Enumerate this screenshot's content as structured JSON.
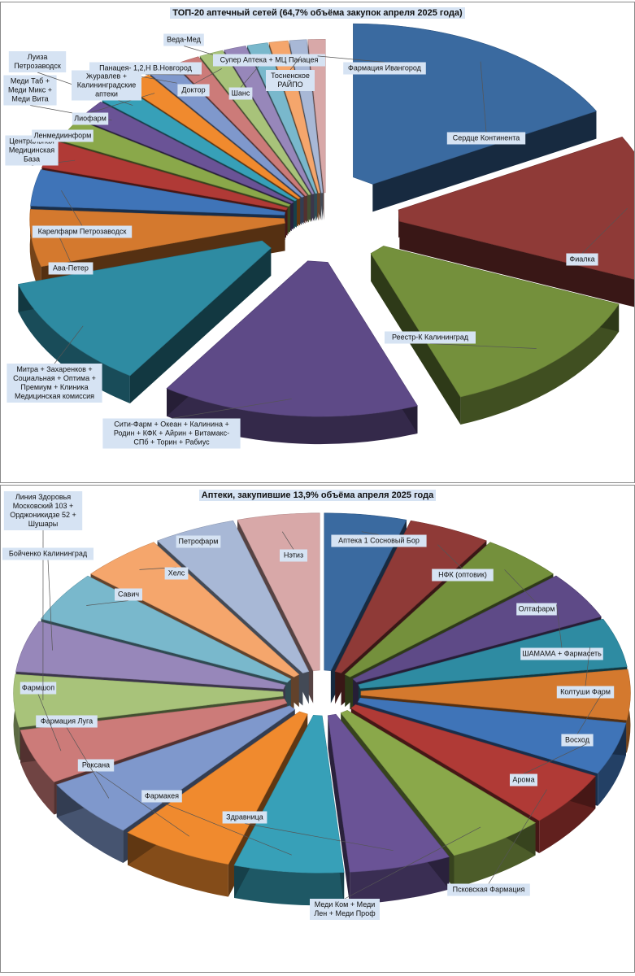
{
  "chart_data": [
    {
      "type": "pie",
      "title": "ТОП-20 аптечный сетей (64,7% объёма закупок апреля 2025 года)",
      "slices": [
        {
          "name": "Сердце Континента",
          "value": 17.0,
          "color": "#3a6aa0"
        },
        {
          "name": "Фиалка",
          "value": 14.0,
          "color": "#8f3a37"
        },
        {
          "name": "Реестр-К Калининград",
          "value": 13.0,
          "color": "#74903c"
        },
        {
          "name": "Сити-Фарм + Океан + Калинина + Родин + КФК + Айрин + Витамакс-СПб + Торин + Рабиус",
          "value": 15.0,
          "color": "#5e4a87"
        },
        {
          "name": "Митра + Захаренков + Социальная + Оптима + Премиум + Клиника Медицинская комиссия",
          "value": 11.0,
          "color": "#2e8ba2"
        },
        {
          "name": "Ава-Петер",
          "value": 5.5,
          "color": "#d4792e"
        },
        {
          "name": "Карелфарм Петрозаводск",
          "value": 3.5,
          "color": "#3f74b8"
        },
        {
          "name": "Центральная Медицинская База",
          "value": 2.6,
          "color": "#b03a36"
        },
        {
          "name": "Ленмедиинформ",
          "value": 2.2,
          "color": "#8aa84a"
        },
        {
          "name": "Меди Таб + Меди Микс + Меди Вита",
          "value": 2.0,
          "color": "#6a5396"
        },
        {
          "name": "Луиза Петрозаводск",
          "value": 1.8,
          "color": "#37a0b8"
        },
        {
          "name": "Лиофарм",
          "value": 1.7,
          "color": "#f08a2e"
        },
        {
          "name": "Журавлев + Калининградские аптеки",
          "value": 1.6,
          "color": "#7f98cc"
        },
        {
          "name": "Панацея- 1,2,Н В.Новгород",
          "value": 1.5,
          "color": "#cc7b79"
        },
        {
          "name": "Доктор",
          "value": 1.4,
          "color": "#a8c37a"
        },
        {
          "name": "Веда-Мед",
          "value": 1.3,
          "color": "#9787ba"
        },
        {
          "name": "Шанс",
          "value": 1.2,
          "color": "#79b8cc"
        },
        {
          "name": "Супер Аптека + МЦ Панацея",
          "value": 1.1,
          "color": "#f5a66c"
        },
        {
          "name": "Тосненское РАЙПО",
          "value": 1.0,
          "color": "#a8b8d6"
        },
        {
          "name": "Фармация Ивангород",
          "value": 1.0,
          "color": "#d8a8a8"
        }
      ]
    },
    {
      "type": "pie",
      "title": "Аптеки, закупившие 13,9% объёма апреля 2025 года",
      "slices": [
        {
          "name": "Аптека 1 Сосновый Бор",
          "value": 4.2,
          "color": "#3a6aa0"
        },
        {
          "name": "НФК (оптовик)",
          "value": 4.2,
          "color": "#8f3a37"
        },
        {
          "name": "Олтафарм",
          "value": 4.2,
          "color": "#74903c"
        },
        {
          "name": "ШАМАМА + Фармасеть",
          "value": 4.2,
          "color": "#5e4a87"
        },
        {
          "name": "Колтуши Фарм",
          "value": 4.3,
          "color": "#2e8ba2"
        },
        {
          "name": "Восход",
          "value": 4.4,
          "color": "#d4792e"
        },
        {
          "name": "Арома",
          "value": 4.6,
          "color": "#3f74b8"
        },
        {
          "name": "Псковская Фармация",
          "value": 4.8,
          "color": "#b03a36"
        },
        {
          "name": "Меди Ком + Меди Лен + Меди Проф",
          "value": 5.0,
          "color": "#8aa84a"
        },
        {
          "name": "Здравница",
          "value": 5.2,
          "color": "#6a5396"
        },
        {
          "name": "Фармакея",
          "value": 5.6,
          "color": "#37a0b8"
        },
        {
          "name": "Роксана",
          "value": 5.8,
          "color": "#f08a2e"
        },
        {
          "name": "Фармация Луга",
          "value": 5.2,
          "color": "#7f98cc"
        },
        {
          "name": "Фармшоп",
          "value": 4.8,
          "color": "#cc7b79"
        },
        {
          "name": "Линия Здоровья Московский 103 + Орджоникидзе 52 + Шушары",
          "value": 4.6,
          "color": "#a8c37a"
        },
        {
          "name": "Бойченко Калининград",
          "value": 4.5,
          "color": "#9787ba"
        },
        {
          "name": "Савич",
          "value": 4.4,
          "color": "#79b8cc"
        },
        {
          "name": "Хелс",
          "value": 4.2,
          "color": "#f5a66c"
        },
        {
          "name": "Петрофарм",
          "value": 4.2,
          "color": "#a8b8d6"
        },
        {
          "name": "Нэтиз",
          "value": 4.2,
          "color": "#d8a8a8"
        }
      ]
    }
  ]
}
